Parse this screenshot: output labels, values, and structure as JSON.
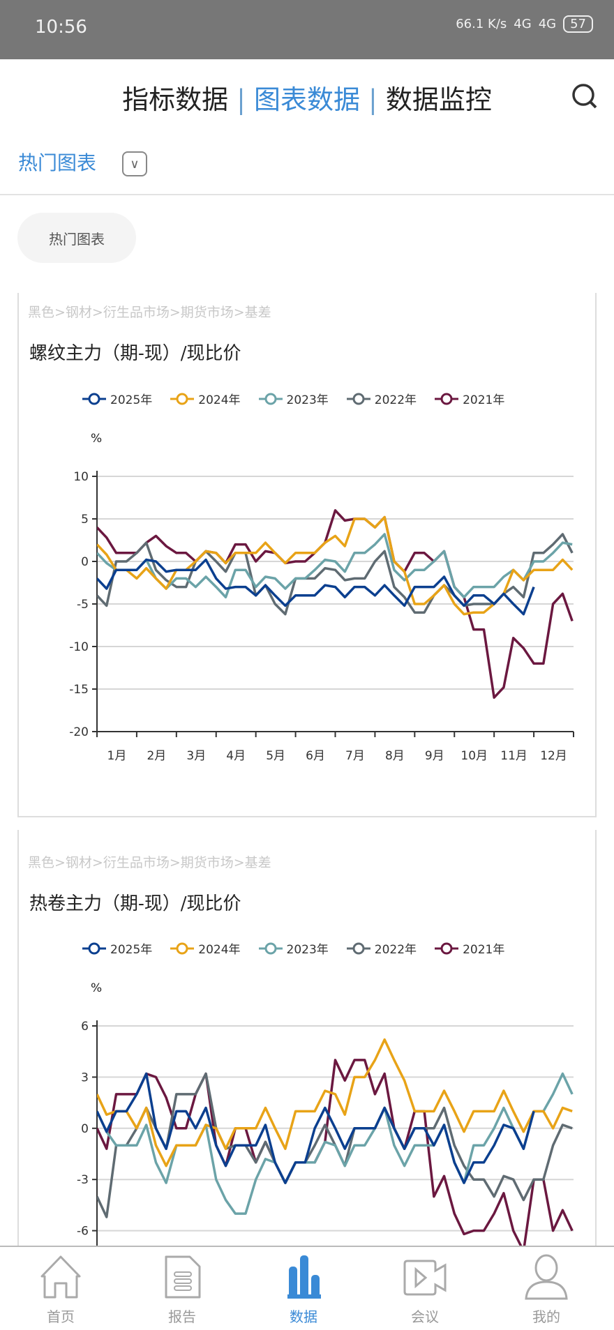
{
  "status": {
    "time": "10:56",
    "speed": "66.1 K/s",
    "net1": "4G",
    "net2": "4G",
    "battery": "57"
  },
  "tabs": [
    {
      "label": "指标数据",
      "active": false
    },
    {
      "label": "图表数据",
      "active": true
    },
    {
      "label": "数据监控",
      "active": false
    }
  ],
  "tab_sep": "|",
  "section": {
    "title": "热门图表",
    "chip": "热门图表"
  },
  "colors": {
    "accent": "#3a8ad6",
    "2025": "#0b3f8f",
    "2024": "#e8a317",
    "2023": "#6ba3a8",
    "2022": "#5f6b72",
    "2021": "#6b1840"
  },
  "chart_data": [
    {
      "type": "line",
      "breadcrumb": "黑色>钢材>衍生品市场>期货市场>基差",
      "title": "螺纹主力（期-现）/现比价",
      "ylabel": "%",
      "ylim": [
        -20,
        10
      ],
      "yticks": [
        "10",
        "5",
        "0",
        "-5",
        "-10",
        "-15",
        "-20"
      ],
      "ytick_values": [
        10,
        5,
        0,
        -5,
        -10,
        -15,
        -20
      ],
      "xtick_labels": [
        "1月",
        "2月",
        "3月",
        "4月",
        "5月",
        "6月",
        "7月",
        "8月",
        "9月",
        "10月",
        "11月",
        "12月"
      ],
      "grid": true,
      "legend": "top",
      "x": [
        "01-01",
        "01-16",
        "02-01",
        "02-16",
        "03-01",
        "03-16",
        "04-01",
        "04-16",
        "05-01",
        "05-16",
        "06-01",
        "06-16",
        "07-01",
        "07-16",
        "08-01",
        "08-16",
        "09-01",
        "09-16",
        "10-01",
        "10-16",
        "11-01",
        "11-16",
        "12-01",
        "12-16",
        "12-31"
      ],
      "series": [
        {
          "name": "2025年",
          "values": [
            -2,
            -1,
            -1,
            0,
            -1,
            -1,
            -2,
            -3,
            -4,
            -4,
            -4,
            -4,
            -3,
            -3,
            -4,
            -4,
            -3,
            -3,
            -4,
            -4,
            -5,
            -5,
            -3,
            null,
            null
          ]
        },
        {
          "name": "2024年",
          "values": [
            2,
            -1,
            -2,
            -2,
            -1,
            0,
            1,
            1,
            1,
            1,
            1,
            1,
            3,
            5,
            4,
            0,
            -5,
            -4,
            -5,
            -6,
            -5,
            -1,
            -1,
            -1,
            -1
          ]
        },
        {
          "name": "2023年",
          "values": [
            1,
            -1,
            -1,
            -2,
            -2,
            -3,
            -3,
            -1,
            -3,
            -2,
            -2,
            -1,
            0,
            1,
            2,
            -1,
            -1,
            0,
            -3,
            -3,
            -3,
            -1,
            0,
            1,
            2
          ]
        },
        {
          "name": "2022年",
          "values": [
            -4,
            0,
            1,
            -1,
            -3,
            0,
            0,
            1,
            -4,
            -5,
            -2,
            -2,
            -1,
            -2,
            0,
            -3,
            -6,
            -4,
            -4,
            -5,
            -5,
            -3,
            1,
            2,
            1
          ]
        },
        {
          "name": "2021年",
          "values": [
            4,
            1,
            1,
            3,
            1,
            0,
            1,
            2,
            0,
            1,
            0,
            1,
            6,
            5,
            4,
            0,
            1,
            0,
            -3,
            -8,
            -16,
            -9,
            -12,
            -5,
            -7
          ]
        }
      ]
    },
    {
      "type": "line",
      "breadcrumb": "黑色>钢材>衍生品市场>期货市场>基差",
      "title": "热卷主力（期-现）/现比价",
      "ylabel": "%",
      "ylim": [
        -9,
        6
      ],
      "yticks": [
        "6",
        "3",
        "0",
        "-3",
        "-6"
      ],
      "ytick_values": [
        6,
        3,
        0,
        -3,
        -6
      ],
      "xtick_labels": [],
      "grid": true,
      "legend": "top",
      "x": [
        "01-01",
        "01-16",
        "02-01",
        "02-16",
        "03-01",
        "03-16",
        "04-01",
        "04-16",
        "05-01",
        "05-16",
        "06-01",
        "06-16",
        "07-01",
        "07-16",
        "08-01",
        "08-16",
        "09-01",
        "09-16",
        "10-01",
        "10-16",
        "11-01",
        "11-16",
        "12-01",
        "12-16",
        "12-31"
      ],
      "series": [
        {
          "name": "2025年",
          "values": [
            1,
            1,
            2,
            0,
            1,
            0,
            -1,
            -1,
            -1,
            -2,
            -2,
            0,
            0,
            0,
            0,
            0,
            0,
            -1,
            -2,
            -2,
            -1,
            0,
            1,
            null,
            null
          ]
        },
        {
          "name": "2024年",
          "values": [
            2,
            1,
            0,
            -1,
            -1,
            -1,
            0,
            0,
            0,
            0,
            1,
            1,
            2,
            3,
            4,
            4,
            1,
            1,
            1,
            1,
            1,
            1,
            1,
            0,
            1
          ]
        },
        {
          "name": "2023年",
          "values": [
            1,
            -1,
            -1,
            -2,
            -1,
            -1,
            -3,
            -5,
            -3,
            -2,
            -2,
            -2,
            -1,
            -1,
            0,
            -1,
            -1,
            -1,
            -2,
            -1,
            0,
            0,
            1,
            2,
            2
          ]
        },
        {
          "name": "2022年",
          "values": [
            -4,
            -1,
            0,
            0,
            2,
            2,
            0,
            -1,
            -2,
            -2,
            -2,
            -1,
            -1,
            0,
            0,
            0,
            0,
            0,
            -1,
            -3,
            -4,
            -3,
            -3,
            -1,
            0
          ]
        },
        {
          "name": "2021年",
          "values": [
            0,
            2,
            2,
            3,
            0,
            2,
            -1,
            0,
            -2,
            -2,
            -2,
            -2,
            4,
            4,
            2,
            0,
            1,
            -4,
            -5,
            -6,
            -5,
            -6,
            -3,
            -6,
            -6
          ]
        }
      ]
    }
  ],
  "nav": [
    {
      "label": "首页",
      "icon": "home-icon"
    },
    {
      "label": "报告",
      "icon": "report-icon"
    },
    {
      "label": "数据",
      "icon": "bar-chart-icon",
      "active": true
    },
    {
      "label": "会议",
      "icon": "video-icon"
    },
    {
      "label": "我的",
      "icon": "user-icon"
    }
  ]
}
